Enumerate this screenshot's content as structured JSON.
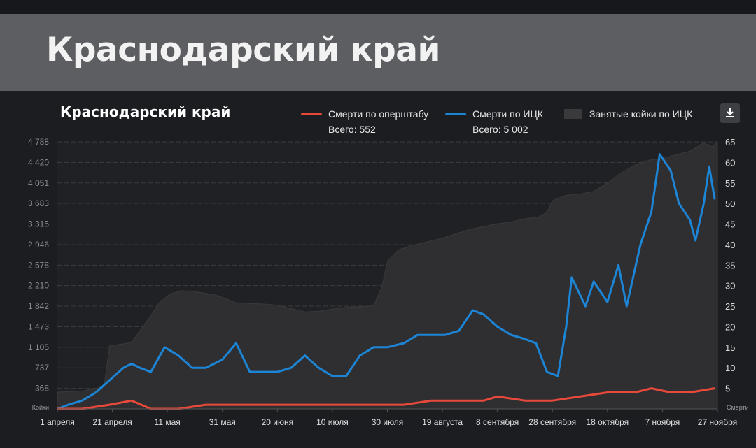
{
  "header": {
    "title": "Краснодарский край"
  },
  "legend": {
    "items": [
      {
        "label": "Смерти по оперштабу",
        "total": "Всего: 552",
        "color": "#e8493a"
      },
      {
        "label": "Смерти по ИЦК",
        "total": "Всего: 5 002",
        "color": "#1d85d6"
      },
      {
        "label": "Занятые койки по ИЦК",
        "total": "",
        "color": "#3a3a3c"
      }
    ]
  },
  "download": {
    "icon": "download-icon"
  },
  "chart_data": {
    "type": "line",
    "title": "Краснодарский край",
    "left_axis": {
      "label": "Койки",
      "ticks": [
        "4 788",
        "4 420",
        "4 051",
        "3 683",
        "3 315",
        "2 946",
        "2 578",
        "2 210",
        "1 842",
        "1 473",
        "1 105",
        "737",
        "368"
      ],
      "tick_values": [
        4788,
        4420,
        4051,
        3683,
        3315,
        2946,
        2578,
        2210,
        1842,
        1473,
        1105,
        737,
        368
      ],
      "range": [
        0,
        4788
      ]
    },
    "right_axis": {
      "label": "Смерти",
      "ticks": [
        "65",
        "60",
        "55",
        "50",
        "45",
        "40",
        "35",
        "30",
        "25",
        "20",
        "15",
        "10",
        "5"
      ],
      "tick_values": [
        65,
        60,
        55,
        50,
        45,
        40,
        35,
        30,
        25,
        20,
        15,
        10,
        5
      ],
      "range": [
        0,
        65
      ]
    },
    "x_ticks": [
      "1 апреля",
      "21 апреля",
      "11 мая",
      "31 мая",
      "20 июня",
      "10 июля",
      "30 июля",
      "19 августа",
      "8 сентября",
      "28 сентября",
      "18 октября",
      "7 ноября",
      "27 ноября"
    ],
    "x_domain": [
      "2020-04-01",
      "2020-11-27"
    ],
    "grid": true,
    "series": [
      {
        "name": "Занятые койки по ИЦК",
        "type": "area",
        "axis": "left",
        "color": "#2f2f31",
        "points": [
          [
            "2020-04-01",
            300
          ],
          [
            "2020-04-10",
            320
          ],
          [
            "2020-04-15",
            360
          ],
          [
            "2020-04-18",
            420
          ],
          [
            "2020-04-20",
            1130
          ],
          [
            "2020-04-24",
            1160
          ],
          [
            "2020-04-28",
            1190
          ],
          [
            "2020-05-01",
            1400
          ],
          [
            "2020-05-04",
            1600
          ],
          [
            "2020-05-08",
            1900
          ],
          [
            "2020-05-12",
            2060
          ],
          [
            "2020-05-16",
            2120
          ],
          [
            "2020-05-20",
            2110
          ],
          [
            "2020-05-24",
            2080
          ],
          [
            "2020-05-28",
            2050
          ],
          [
            "2020-06-01",
            1980
          ],
          [
            "2020-06-05",
            1900
          ],
          [
            "2020-06-10",
            1890
          ],
          [
            "2020-06-15",
            1880
          ],
          [
            "2020-06-20",
            1860
          ],
          [
            "2020-06-25",
            1800
          ],
          [
            "2020-06-30",
            1740
          ],
          [
            "2020-07-05",
            1750
          ],
          [
            "2020-07-10",
            1790
          ],
          [
            "2020-07-15",
            1820
          ],
          [
            "2020-07-20",
            1830
          ],
          [
            "2020-07-25",
            1850
          ],
          [
            "2020-07-28",
            2190
          ],
          [
            "2020-07-30",
            2640
          ],
          [
            "2020-08-03",
            2850
          ],
          [
            "2020-08-08",
            2930
          ],
          [
            "2020-08-13",
            2990
          ],
          [
            "2020-08-19",
            3060
          ],
          [
            "2020-08-24",
            3140
          ],
          [
            "2020-08-29",
            3220
          ],
          [
            "2020-09-03",
            3270
          ],
          [
            "2020-09-08",
            3320
          ],
          [
            "2020-09-13",
            3350
          ],
          [
            "2020-09-18",
            3410
          ],
          [
            "2020-09-23",
            3440
          ],
          [
            "2020-09-26",
            3520
          ],
          [
            "2020-09-28",
            3730
          ],
          [
            "2020-10-03",
            3830
          ],
          [
            "2020-10-08",
            3850
          ],
          [
            "2020-10-13",
            3900
          ],
          [
            "2020-10-18",
            4050
          ],
          [
            "2020-10-23",
            4230
          ],
          [
            "2020-10-28",
            4370
          ],
          [
            "2020-11-02",
            4460
          ],
          [
            "2020-11-07",
            4490
          ],
          [
            "2020-11-12",
            4560
          ],
          [
            "2020-11-17",
            4620
          ],
          [
            "2020-11-22",
            4770
          ],
          [
            "2020-11-25",
            4700
          ],
          [
            "2020-11-27",
            4790
          ]
        ]
      },
      {
        "name": "Смерти по ИЦК",
        "type": "line",
        "axis": "right",
        "color": "#1d85d6",
        "points": [
          [
            "2020-04-01",
            0
          ],
          [
            "2020-04-05",
            1
          ],
          [
            "2020-04-10",
            2
          ],
          [
            "2020-04-15",
            4
          ],
          [
            "2020-04-20",
            7
          ],
          [
            "2020-04-25",
            10
          ],
          [
            "2020-04-28",
            11
          ],
          [
            "2020-05-01",
            10
          ],
          [
            "2020-05-05",
            9
          ],
          [
            "2020-05-10",
            15
          ],
          [
            "2020-05-15",
            13
          ],
          [
            "2020-05-20",
            10
          ],
          [
            "2020-05-25",
            10
          ],
          [
            "2020-05-31",
            12
          ],
          [
            "2020-06-05",
            16
          ],
          [
            "2020-06-10",
            9
          ],
          [
            "2020-06-15",
            9
          ],
          [
            "2020-06-20",
            9
          ],
          [
            "2020-06-25",
            10
          ],
          [
            "2020-06-30",
            13
          ],
          [
            "2020-07-05",
            10
          ],
          [
            "2020-07-10",
            8
          ],
          [
            "2020-07-15",
            8
          ],
          [
            "2020-07-20",
            13
          ],
          [
            "2020-07-25",
            15
          ],
          [
            "2020-07-30",
            15
          ],
          [
            "2020-08-05",
            16
          ],
          [
            "2020-08-10",
            18
          ],
          [
            "2020-08-15",
            18
          ],
          [
            "2020-08-20",
            18
          ],
          [
            "2020-08-25",
            19
          ],
          [
            "2020-08-30",
            24
          ],
          [
            "2020-09-03",
            23
          ],
          [
            "2020-09-08",
            20
          ],
          [
            "2020-09-13",
            18
          ],
          [
            "2020-09-18",
            17
          ],
          [
            "2020-09-22",
            16
          ],
          [
            "2020-09-26",
            9
          ],
          [
            "2020-09-30",
            8
          ],
          [
            "2020-10-03",
            20
          ],
          [
            "2020-10-05",
            32
          ],
          [
            "2020-10-10",
            25
          ],
          [
            "2020-10-13",
            31
          ],
          [
            "2020-10-18",
            26
          ],
          [
            "2020-10-22",
            35
          ],
          [
            "2020-10-25",
            25
          ],
          [
            "2020-10-30",
            40
          ],
          [
            "2020-11-03",
            48
          ],
          [
            "2020-11-06",
            62
          ],
          [
            "2020-11-10",
            58
          ],
          [
            "2020-11-13",
            50
          ],
          [
            "2020-11-17",
            46
          ],
          [
            "2020-11-19",
            41
          ],
          [
            "2020-11-22",
            50
          ],
          [
            "2020-11-24",
            59
          ],
          [
            "2020-11-26",
            51
          ]
        ]
      },
      {
        "name": "Смерти по оперштабу",
        "type": "line",
        "axis": "right",
        "color": "#e8493a",
        "points": [
          [
            "2020-04-01",
            0
          ],
          [
            "2020-04-10",
            0
          ],
          [
            "2020-04-20",
            1
          ],
          [
            "2020-04-28",
            2
          ],
          [
            "2020-05-05",
            0
          ],
          [
            "2020-05-15",
            0
          ],
          [
            "2020-05-25",
            1
          ],
          [
            "2020-06-05",
            1
          ],
          [
            "2020-06-15",
            1
          ],
          [
            "2020-06-25",
            1
          ],
          [
            "2020-07-05",
            1
          ],
          [
            "2020-07-15",
            1
          ],
          [
            "2020-07-25",
            1
          ],
          [
            "2020-08-05",
            1
          ],
          [
            "2020-08-15",
            2
          ],
          [
            "2020-08-25",
            2
          ],
          [
            "2020-09-03",
            2
          ],
          [
            "2020-09-08",
            3
          ],
          [
            "2020-09-18",
            2
          ],
          [
            "2020-09-28",
            2
          ],
          [
            "2020-10-08",
            3
          ],
          [
            "2020-10-18",
            4
          ],
          [
            "2020-10-28",
            4
          ],
          [
            "2020-11-03",
            5
          ],
          [
            "2020-11-10",
            4
          ],
          [
            "2020-11-17",
            4
          ],
          [
            "2020-11-26",
            5
          ]
        ]
      }
    ]
  }
}
